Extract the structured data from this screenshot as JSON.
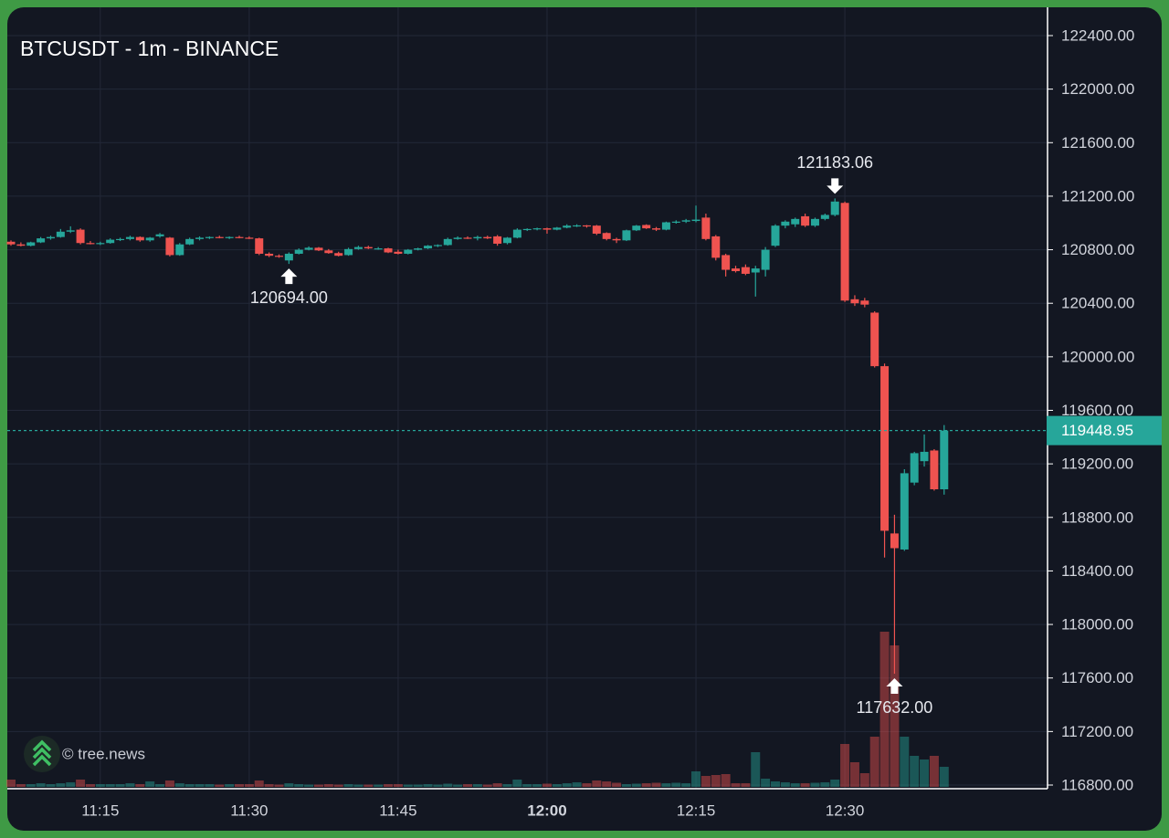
{
  "chart_data": {
    "type": "candlestick",
    "title": "BTCUSDT - 1m - BINANCE",
    "watermark": "© tree.news",
    "up_color": "#26a69a",
    "down_color": "#ef5350",
    "grid": true,
    "categories": [
      null,
      null,
      null,
      null,
      null,
      null,
      null,
      null,
      null,
      "11:15",
      null,
      null,
      null,
      null,
      null,
      null,
      null,
      null,
      null,
      null,
      null,
      null,
      null,
      null,
      "11:30",
      null,
      null,
      null,
      null,
      null,
      null,
      null,
      null,
      null,
      null,
      null,
      null,
      null,
      null,
      "11:45",
      null,
      null,
      null,
      null,
      null,
      null,
      null,
      null,
      null,
      null,
      null,
      null,
      null,
      null,
      "12:00",
      null,
      null,
      null,
      null,
      null,
      null,
      null,
      null,
      null,
      null,
      null,
      null,
      null,
      null,
      "12:15",
      null,
      null,
      null,
      null,
      null,
      null,
      null,
      null,
      null,
      null,
      null,
      null,
      null,
      null,
      "12:30",
      null,
      null,
      null,
      null,
      null,
      null,
      null,
      null,
      null,
      null
    ],
    "open": [
      120860,
      120840,
      120830,
      120855,
      120885,
      120895,
      120935,
      120950,
      120850,
      120845,
      120850,
      120875,
      120880,
      120895,
      120870,
      120900,
      120890,
      120760,
      120840,
      120880,
      120890,
      120895,
      120890,
      120895,
      120890,
      120885,
      120770,
      120755,
      120720,
      120770,
      120800,
      120815,
      120795,
      120775,
      120760,
      120805,
      120820,
      120810,
      120810,
      120785,
      120770,
      120800,
      120810,
      120830,
      120835,
      120880,
      120890,
      120885,
      120895,
      120900,
      120850,
      120890,
      120950,
      120955,
      120960,
      120950,
      120965,
      120980,
      120982,
      120980,
      120925,
      120880,
      120870,
      120945,
      120985,
      120960,
      120950,
      121005,
      121010,
      121015,
      121040,
      120900,
      120760,
      120660,
      120670,
      120630,
      120650,
      120830,
      120980,
      120990,
      121050,
      120980,
      121030,
      121060,
      121150,
      120430,
      120420,
      120330,
      119930,
      118680,
      118560,
      119060,
      119220,
      119300,
      119010
    ],
    "high": [
      120870,
      120855,
      120860,
      120895,
      120905,
      120955,
      120975,
      120960,
      120865,
      120860,
      120885,
      120890,
      120905,
      120900,
      120895,
      120925,
      120895,
      120850,
      120890,
      120900,
      120900,
      120905,
      120900,
      120905,
      120900,
      120890,
      120780,
      120765,
      120780,
      120810,
      120825,
      120820,
      120805,
      120785,
      120815,
      120830,
      120830,
      120820,
      120815,
      120800,
      120805,
      120815,
      120835,
      120840,
      120890,
      120900,
      120900,
      120905,
      120905,
      120910,
      120895,
      120960,
      120960,
      120965,
      120965,
      120970,
      120990,
      120990,
      120985,
      120985,
      120930,
      120890,
      120950,
      120985,
      120990,
      120970,
      121010,
      121020,
      121030,
      121130,
      121070,
      120910,
      120770,
      120680,
      120690,
      120680,
      120820,
      120990,
      121020,
      121040,
      121070,
      121040,
      121070,
      121183.06,
      121160,
      120460,
      120440,
      120340,
      119950,
      118820,
      119160,
      119290,
      119420,
      119310,
      119490
    ],
    "low": [
      120830,
      120825,
      120825,
      120850,
      120875,
      120890,
      120925,
      120840,
      120840,
      120835,
      120845,
      120865,
      120870,
      120860,
      120860,
      120890,
      120750,
      120755,
      120835,
      120870,
      120880,
      120885,
      120880,
      120885,
      120880,
      120760,
      120745,
      120740,
      120694,
      120765,
      120795,
      120790,
      120770,
      120750,
      120755,
      120800,
      120805,
      120800,
      120775,
      120765,
      120765,
      120795,
      120805,
      120820,
      120830,
      120875,
      120880,
      120870,
      120880,
      120830,
      120840,
      120885,
      120940,
      120945,
      120920,
      120945,
      120960,
      120970,
      120965,
      120910,
      120870,
      120850,
      120865,
      120940,
      120955,
      120940,
      120945,
      120995,
      121000,
      121005,
      120870,
      120720,
      120600,
      120630,
      120610,
      120450,
      120600,
      120820,
      120960,
      120970,
      120970,
      120970,
      121020,
      121050,
      120410,
      120380,
      120370,
      119920,
      118500,
      117632,
      118550,
      119040,
      119180,
      119000,
      118970
    ],
    "close": [
      120840,
      120830,
      120855,
      120885,
      120895,
      120935,
      120945,
      120850,
      120845,
      120850,
      120875,
      120880,
      120895,
      120870,
      120890,
      120915,
      120760,
      120840,
      120880,
      120890,
      120895,
      120890,
      120895,
      120890,
      120885,
      120770,
      120755,
      120750,
      120770,
      120800,
      120815,
      120795,
      120775,
      120755,
      120805,
      120820,
      120810,
      120810,
      120780,
      120770,
      120800,
      120810,
      120830,
      120835,
      120880,
      120890,
      120885,
      120895,
      120885,
      120845,
      120890,
      120950,
      120955,
      120960,
      120950,
      120965,
      120980,
      120982,
      120975,
      120920,
      120880,
      120870,
      120945,
      120980,
      120960,
      120950,
      121005,
      121010,
      121020,
      121025,
      120880,
      120740,
      120650,
      120640,
      120620,
      120660,
      120800,
      120980,
      121010,
      121030,
      120980,
      121030,
      121060,
      121160,
      120420,
      120400,
      120390,
      119930,
      118700,
      118570,
      119130,
      119280,
      119290,
      119010,
      119448.95
    ],
    "volume": [
      80,
      30,
      30,
      40,
      30,
      40,
      50,
      80,
      30,
      30,
      30,
      30,
      40,
      30,
      60,
      30,
      70,
      40,
      30,
      30,
      30,
      25,
      30,
      30,
      30,
      70,
      30,
      25,
      40,
      30,
      25,
      25,
      30,
      25,
      30,
      25,
      25,
      25,
      30,
      30,
      25,
      25,
      30,
      25,
      35,
      25,
      30,
      30,
      25,
      40,
      30,
      80,
      30,
      30,
      35,
      30,
      40,
      50,
      40,
      70,
      60,
      45,
      30,
      35,
      40,
      45,
      40,
      45,
      40,
      170,
      120,
      130,
      140,
      40,
      40,
      380,
      90,
      60,
      50,
      40,
      40,
      45,
      50,
      80,
      470,
      270,
      150,
      550,
      1700,
      1550,
      550,
      340,
      300,
      340,
      220
    ],
    "annotations": [
      {
        "value": 121183.06,
        "label": "121183.06"
      },
      {
        "value": 120694,
        "label": "120694.00"
      },
      {
        "value": 117632,
        "label": "117632.00"
      }
    ],
    "ylim": [
      116800,
      122400
    ],
    "yticks": [
      {
        "value": 116800,
        "label": "116800.00"
      },
      {
        "value": 117200,
        "label": "117200.00"
      },
      {
        "value": 117600,
        "label": "117600.00"
      },
      {
        "value": 118000,
        "label": "118000.00"
      },
      {
        "value": 118400,
        "label": "118400.00"
      },
      {
        "value": 118800,
        "label": "118800.00"
      },
      {
        "value": 119200,
        "label": "119200.00"
      },
      {
        "value": 119600,
        "label": "119600.00"
      },
      {
        "value": 120000,
        "label": "120000.00"
      },
      {
        "value": 120400,
        "label": "120400.00"
      },
      {
        "value": 120800,
        "label": "120800.00"
      },
      {
        "value": 121200,
        "label": "121200.00"
      },
      {
        "value": 121600,
        "label": "121600.00"
      },
      {
        "value": 122000,
        "label": "122000.00"
      },
      {
        "value": 122400,
        "label": "122400.00"
      }
    ]
  }
}
